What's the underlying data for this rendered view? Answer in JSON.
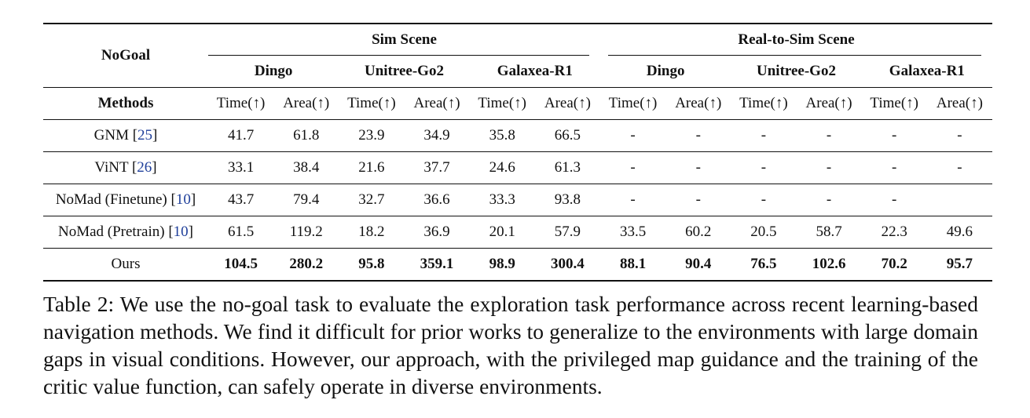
{
  "table": {
    "corner_label": "NoGoal",
    "methods_label": "Methods",
    "groups": [
      {
        "label": "Sim Scene",
        "robots": [
          "Dingo",
          "Unitree-Go2",
          "Galaxea-R1"
        ]
      },
      {
        "label": "Real-to-Sim Scene",
        "robots": [
          "Dingo",
          "Unitree-Go2",
          "Galaxea-R1"
        ]
      }
    ],
    "metric_labels": [
      "Time(↑)",
      "Area(↑)",
      "Time(↑)",
      "Area(↑)",
      "Time(↑)",
      "Area(↑)",
      "Time(↑)",
      "Area(↑)",
      "Time(↑)",
      "Area(↑)",
      "Time(↑)",
      "Area(↑)"
    ],
    "rows": [
      {
        "method": "GNM [",
        "cite": "25",
        "close": "]",
        "bold": false,
        "values": [
          "41.7",
          "61.8",
          "23.9",
          "34.9",
          "35.8",
          "66.5",
          "-",
          "-",
          "-",
          "-",
          "-",
          "-"
        ]
      },
      {
        "method": "ViNT [",
        "cite": "26",
        "close": "]",
        "bold": false,
        "values": [
          "33.1",
          "38.4",
          "21.6",
          "37.7",
          "24.6",
          "61.3",
          "-",
          "-",
          "-",
          "-",
          "-",
          "-"
        ]
      },
      {
        "method": "NoMad (Finetune) [",
        "cite": "10",
        "close": "]",
        "bold": false,
        "values": [
          "43.7",
          "79.4",
          "32.7",
          "36.6",
          "33.3",
          "93.8",
          "-",
          "-",
          "-",
          "-",
          "-",
          ""
        ]
      },
      {
        "method": "NoMad (Pretrain) [",
        "cite": "10",
        "close": "]",
        "bold": false,
        "values": [
          "61.5",
          "119.2",
          "18.2",
          "36.9",
          "20.1",
          "57.9",
          "33.5",
          "60.2",
          "20.5",
          "58.7",
          "22.3",
          "49.6"
        ]
      },
      {
        "method": "Ours",
        "cite": "",
        "close": "",
        "bold": true,
        "values": [
          "104.5",
          "280.2",
          "95.8",
          "359.1",
          "98.9",
          "300.4",
          "88.1",
          "90.4",
          "76.5",
          "102.6",
          "70.2",
          "95.7"
        ]
      }
    ]
  },
  "caption": "Table 2: We use the no-goal task to evaluate the exploration task performance across recent learning-based navigation methods. We find it difficult for prior works to generalize to the environments with large domain gaps in visual conditions. However, our approach, with the privileged map guidance and the training of the critic value function, can safely operate in diverse environments."
}
